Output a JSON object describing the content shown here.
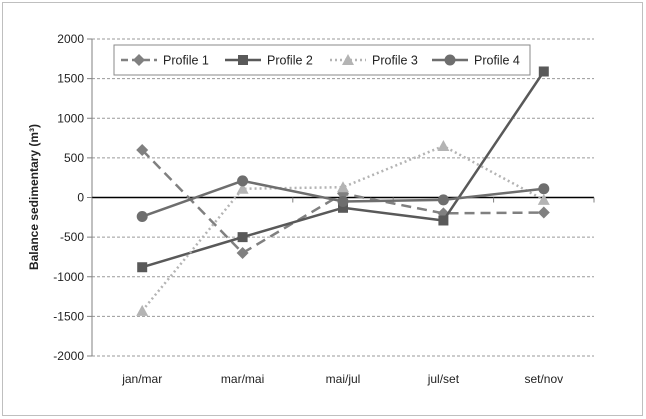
{
  "chart_data": {
    "type": "line",
    "title": "",
    "xlabel": "",
    "ylabel": "Balance sedimentary (m³)",
    "categories": [
      "jan/mar",
      "mar/mai",
      "mai/jul",
      "jul/set",
      "set/nov"
    ],
    "ylim": [
      -2000,
      2000
    ],
    "yticks": [
      2000,
      1500,
      1000,
      500,
      0,
      -500,
      -1000,
      -1500,
      -2000
    ],
    "grid": "horizontal dashed",
    "legend_position": "top",
    "series": [
      {
        "name": "Profile 1",
        "values": [
          600,
          -700,
          50,
          -200,
          -190
        ],
        "color": "#808080",
        "line": "dashed",
        "marker": "diamond"
      },
      {
        "name": "Profile 2",
        "values": [
          -880,
          -500,
          -130,
          -290,
          1590
        ],
        "color": "#595959",
        "line": "solid",
        "marker": "square"
      },
      {
        "name": "Profile 3",
        "values": [
          -1430,
          110,
          130,
          650,
          -30
        ],
        "color": "#b4b4b4",
        "line": "dotted",
        "marker": "triangle"
      },
      {
        "name": "Profile 4",
        "values": [
          -240,
          210,
          -50,
          -30,
          110
        ],
        "color": "#6e6e6e",
        "line": "solid",
        "marker": "circle"
      }
    ]
  }
}
